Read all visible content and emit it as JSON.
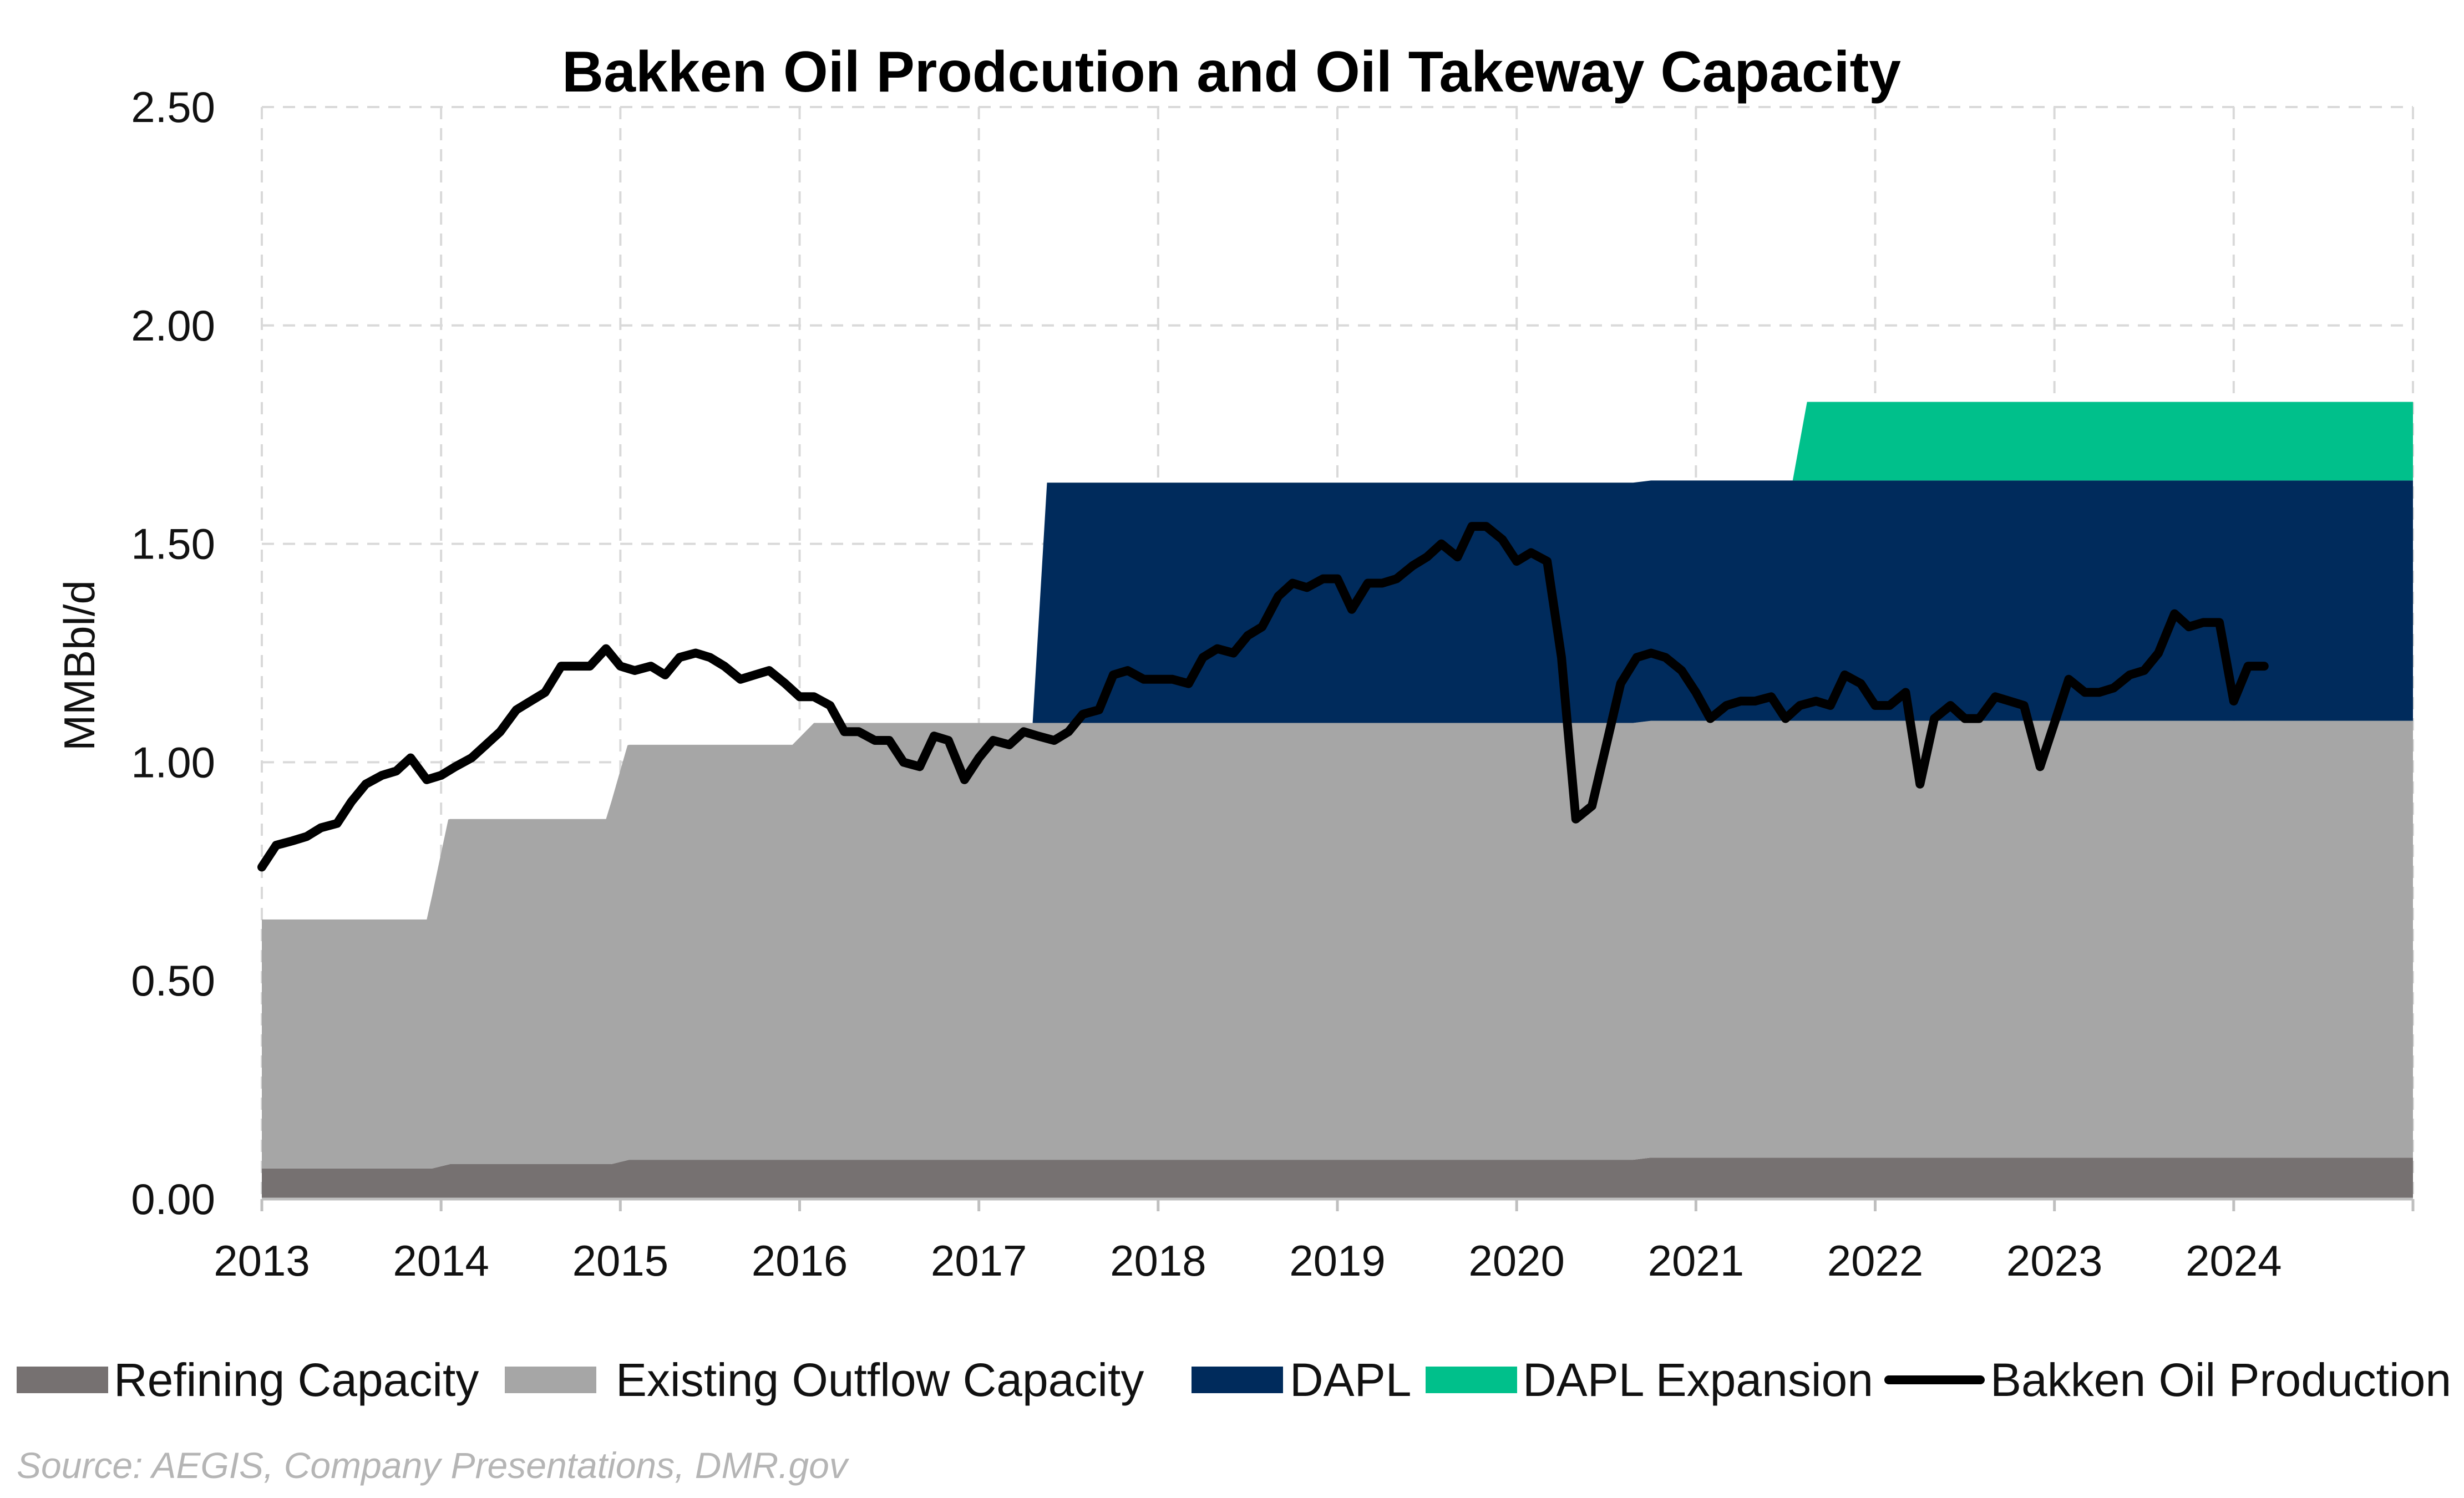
{
  "chart_data": {
    "type": "area",
    "title": "Bakken Oil Prodcution and Oil Takeway Capacity",
    "ylabel": "MMBbl/d",
    "xlabel": "",
    "xlim": [
      2013.0,
      2025.0
    ],
    "ylim": [
      0,
      2.5
    ],
    "x_ticks": [
      "2013",
      "2014",
      "2015",
      "2016",
      "2017",
      "2018",
      "2019",
      "2020",
      "2021",
      "2022",
      "2023",
      "2024"
    ],
    "y_ticks": [
      "0.00",
      "0.50",
      "1.00",
      "1.50",
      "2.00",
      "2.50"
    ],
    "grid": true,
    "legend_position": "bottom",
    "source": "Source: AEGIS, Company Presentations, DMR.gov",
    "series": [
      {
        "name": "Refining Capacity",
        "kind": "area",
        "color": "#767171",
        "points": [
          [
            2013.0,
            0.07
          ],
          [
            2013.95,
            0.07
          ],
          [
            2014.05,
            0.08
          ],
          [
            2014.95,
            0.08
          ],
          [
            2015.05,
            0.09
          ],
          [
            2020.65,
            0.09
          ],
          [
            2020.75,
            0.095
          ],
          [
            2025.0,
            0.095
          ]
        ]
      },
      {
        "name": "Existing Outflow Capacity",
        "kind": "area",
        "color": "#a6a6a6",
        "points": [
          [
            2013.0,
            0.57
          ],
          [
            2013.92,
            0.57
          ],
          [
            2014.04,
            0.79
          ],
          [
            2014.92,
            0.79
          ],
          [
            2015.04,
            0.95
          ],
          [
            2015.96,
            0.95
          ],
          [
            2016.08,
            1.0
          ],
          [
            2025.0,
            1.0
          ]
        ]
      },
      {
        "name": "DAPL",
        "kind": "area",
        "color": "#002b5c",
        "points": [
          [
            2013.0,
            0
          ],
          [
            2017.3,
            0
          ],
          [
            2017.38,
            0.55
          ],
          [
            2025.0,
            0.55
          ]
        ]
      },
      {
        "name": "DAPL Expansion",
        "kind": "area",
        "color": "#00c08b",
        "points": [
          [
            2013.0,
            0
          ],
          [
            2021.54,
            0
          ],
          [
            2021.62,
            0.18
          ],
          [
            2025.0,
            0.18
          ]
        ]
      },
      {
        "name": "Bakken Oil Production",
        "kind": "line",
        "color": "#000000",
        "points": [
          [
            2013.0,
            0.76
          ],
          [
            2013.08,
            0.81
          ],
          [
            2013.17,
            0.82
          ],
          [
            2013.25,
            0.83
          ],
          [
            2013.33,
            0.85
          ],
          [
            2013.42,
            0.86
          ],
          [
            2013.5,
            0.91
          ],
          [
            2013.58,
            0.95
          ],
          [
            2013.67,
            0.97
          ],
          [
            2013.75,
            0.98
          ],
          [
            2013.83,
            1.01
          ],
          [
            2013.92,
            0.96
          ],
          [
            2014.0,
            0.97
          ],
          [
            2014.08,
            0.99
          ],
          [
            2014.17,
            1.01
          ],
          [
            2014.25,
            1.04
          ],
          [
            2014.33,
            1.07
          ],
          [
            2014.42,
            1.12
          ],
          [
            2014.5,
            1.14
          ],
          [
            2014.58,
            1.16
          ],
          [
            2014.67,
            1.22
          ],
          [
            2014.75,
            1.22
          ],
          [
            2014.83,
            1.22
          ],
          [
            2014.92,
            1.26
          ],
          [
            2015.0,
            1.22
          ],
          [
            2015.08,
            1.21
          ],
          [
            2015.17,
            1.22
          ],
          [
            2015.25,
            1.2
          ],
          [
            2015.33,
            1.24
          ],
          [
            2015.42,
            1.25
          ],
          [
            2015.5,
            1.24
          ],
          [
            2015.58,
            1.22
          ],
          [
            2015.67,
            1.19
          ],
          [
            2015.75,
            1.2
          ],
          [
            2015.83,
            1.21
          ],
          [
            2015.92,
            1.18
          ],
          [
            2016.0,
            1.15
          ],
          [
            2016.08,
            1.15
          ],
          [
            2016.17,
            1.13
          ],
          [
            2016.25,
            1.07
          ],
          [
            2016.33,
            1.07
          ],
          [
            2016.42,
            1.05
          ],
          [
            2016.5,
            1.05
          ],
          [
            2016.58,
            1.0
          ],
          [
            2016.67,
            0.99
          ],
          [
            2016.75,
            1.06
          ],
          [
            2016.83,
            1.05
          ],
          [
            2016.92,
            0.96
          ],
          [
            2017.0,
            1.01
          ],
          [
            2017.08,
            1.05
          ],
          [
            2017.17,
            1.04
          ],
          [
            2017.25,
            1.07
          ],
          [
            2017.33,
            1.06
          ],
          [
            2017.42,
            1.05
          ],
          [
            2017.5,
            1.07
          ],
          [
            2017.58,
            1.11
          ],
          [
            2017.67,
            1.12
          ],
          [
            2017.75,
            1.2
          ],
          [
            2017.83,
            1.21
          ],
          [
            2017.92,
            1.19
          ],
          [
            2018.0,
            1.19
          ],
          [
            2018.08,
            1.19
          ],
          [
            2018.17,
            1.18
          ],
          [
            2018.25,
            1.24
          ],
          [
            2018.33,
            1.26
          ],
          [
            2018.42,
            1.25
          ],
          [
            2018.5,
            1.29
          ],
          [
            2018.58,
            1.31
          ],
          [
            2018.67,
            1.38
          ],
          [
            2018.75,
            1.41
          ],
          [
            2018.83,
            1.4
          ],
          [
            2018.92,
            1.42
          ],
          [
            2019.0,
            1.42
          ],
          [
            2019.08,
            1.35
          ],
          [
            2019.17,
            1.41
          ],
          [
            2019.25,
            1.41
          ],
          [
            2019.33,
            1.42
          ],
          [
            2019.42,
            1.45
          ],
          [
            2019.5,
            1.47
          ],
          [
            2019.58,
            1.5
          ],
          [
            2019.67,
            1.47
          ],
          [
            2019.75,
            1.54
          ],
          [
            2019.83,
            1.54
          ],
          [
            2019.92,
            1.51
          ],
          [
            2020.0,
            1.46
          ],
          [
            2020.08,
            1.48
          ],
          [
            2020.17,
            1.46
          ],
          [
            2020.25,
            1.24
          ],
          [
            2020.33,
            0.87
          ],
          [
            2020.42,
            0.9
          ],
          [
            2020.5,
            1.04
          ],
          [
            2020.58,
            1.18
          ],
          [
            2020.67,
            1.24
          ],
          [
            2020.75,
            1.25
          ],
          [
            2020.83,
            1.24
          ],
          [
            2020.92,
            1.21
          ],
          [
            2021.0,
            1.16
          ],
          [
            2021.08,
            1.1
          ],
          [
            2021.17,
            1.13
          ],
          [
            2021.25,
            1.14
          ],
          [
            2021.33,
            1.14
          ],
          [
            2021.42,
            1.15
          ],
          [
            2021.5,
            1.1
          ],
          [
            2021.58,
            1.13
          ],
          [
            2021.67,
            1.14
          ],
          [
            2021.75,
            1.13
          ],
          [
            2021.83,
            1.2
          ],
          [
            2021.92,
            1.18
          ],
          [
            2022.0,
            1.13
          ],
          [
            2022.08,
            1.13
          ],
          [
            2022.17,
            1.16
          ],
          [
            2022.25,
            0.95
          ],
          [
            2022.33,
            1.1
          ],
          [
            2022.42,
            1.13
          ],
          [
            2022.5,
            1.1
          ],
          [
            2022.58,
            1.1
          ],
          [
            2022.67,
            1.15
          ],
          [
            2022.75,
            1.14
          ],
          [
            2022.83,
            1.13
          ],
          [
            2022.92,
            0.99
          ],
          [
            2023.0,
            1.09
          ],
          [
            2023.08,
            1.19
          ],
          [
            2023.17,
            1.16
          ],
          [
            2023.25,
            1.16
          ],
          [
            2023.33,
            1.17
          ],
          [
            2023.42,
            1.2
          ],
          [
            2023.5,
            1.21
          ],
          [
            2023.58,
            1.25
          ],
          [
            2023.67,
            1.34
          ],
          [
            2023.75,
            1.31
          ],
          [
            2023.83,
            1.32
          ],
          [
            2023.92,
            1.32
          ],
          [
            2024.0,
            1.14
          ],
          [
            2024.08,
            1.22
          ],
          [
            2024.17,
            1.22
          ]
        ]
      }
    ]
  }
}
